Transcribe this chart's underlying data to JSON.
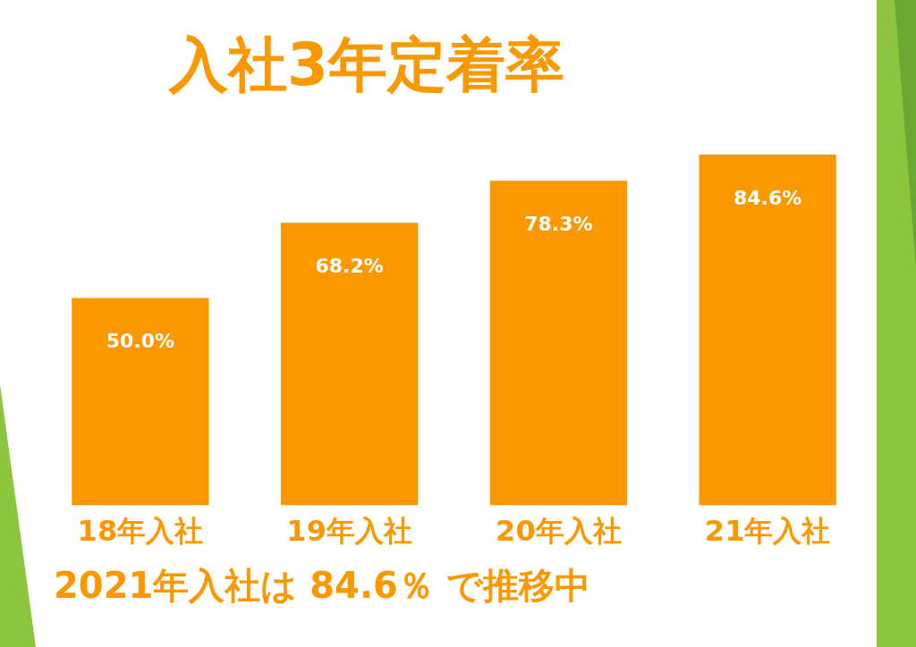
{
  "chart_data": {
    "type": "bar",
    "title": "入社3年定着率",
    "categories": [
      "18年入社",
      "19年入社",
      "20年入社",
      "21年入社"
    ],
    "values": [
      50.0,
      68.2,
      78.3,
      84.6
    ],
    "color": "#fb9800",
    "value_labels": [
      "50.0%",
      "68.2%",
      "78.3%",
      "84.6%"
    ],
    "grid": false,
    "legend": false,
    "annotations": [
      "2021年入社は 84.6％ で推移中"
    ]
  }
}
